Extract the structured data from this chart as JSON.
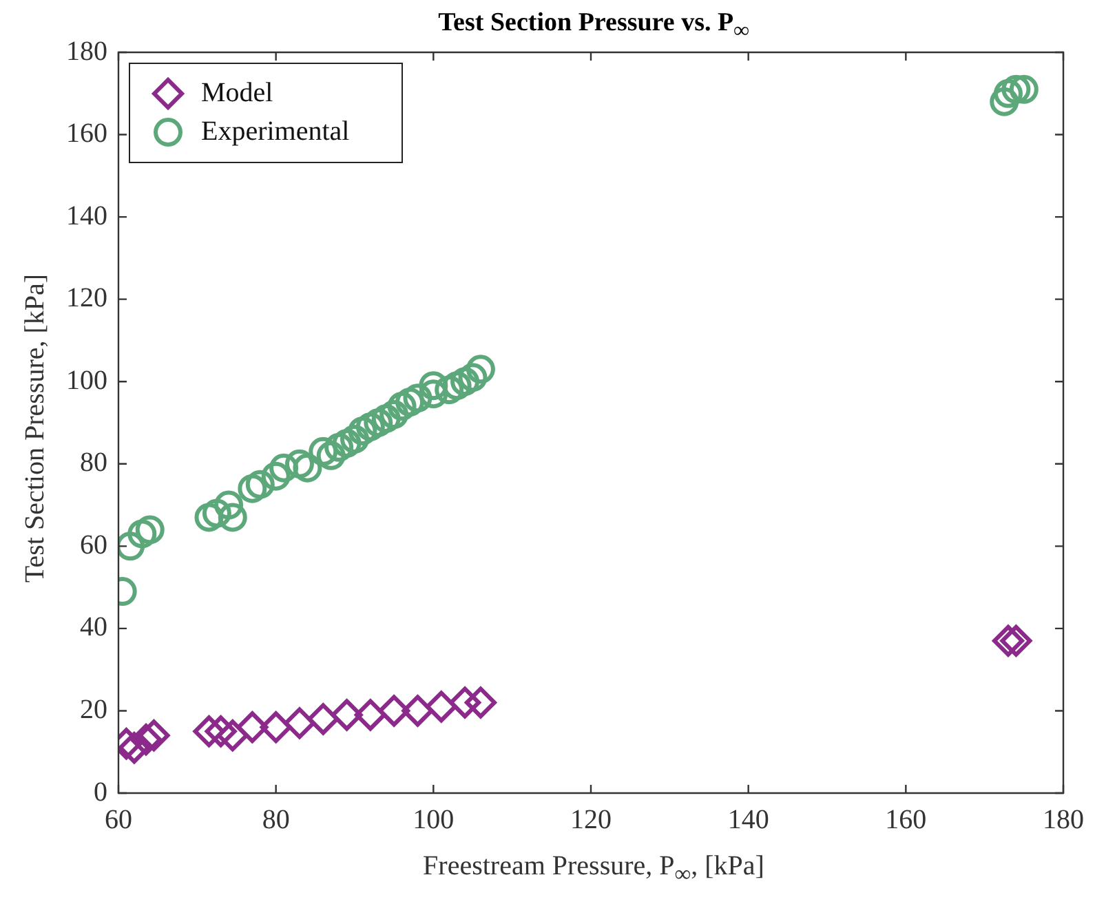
{
  "chart_data": {
    "type": "scatter",
    "title": "Test Section Pressure vs. P$_{∞}$",
    "xlabel": "Freestream Pressure, P$_{∞}$, [kPa]",
    "ylabel": "Test Section Pressure, [kPa]",
    "xlim": [
      60,
      180
    ],
    "xticks": [
      60,
      80,
      100,
      120,
      140,
      160,
      180
    ],
    "ylim": [
      0,
      180
    ],
    "yticks": [
      0,
      20,
      40,
      60,
      80,
      100,
      120,
      140,
      160,
      180
    ],
    "grid": false,
    "legend": "top left",
    "series": [
      {
        "name": "Model",
        "color": "#8b2a8b",
        "marker": "diamond",
        "x": [
          61,
          62,
          63.5,
          64.5,
          71.5,
          73,
          74.5,
          77,
          80,
          83,
          86,
          89,
          92,
          95,
          98,
          101,
          104,
          106,
          173,
          174
        ],
        "values": [
          12,
          11,
          13,
          14,
          15,
          15,
          14,
          16,
          16,
          17,
          18,
          19,
          19,
          20,
          20,
          21,
          22,
          22,
          37,
          37
        ]
      },
      {
        "name": "Experimental",
        "color": "#5ca87a",
        "marker": "circle",
        "x": [
          60.5,
          61.5,
          63,
          64,
          71.5,
          72.5,
          74.5,
          74,
          77,
          78,
          80,
          81,
          83,
          84,
          86,
          87,
          88,
          89,
          90,
          91,
          92,
          93,
          94,
          95,
          96,
          97,
          98,
          100,
          100,
          102,
          103,
          104,
          105,
          106,
          172.5,
          173,
          174,
          175
        ],
        "values": [
          49,
          60,
          63,
          64,
          67,
          68,
          67,
          70,
          74,
          75,
          77,
          79,
          80,
          79,
          83,
          82,
          84,
          85,
          86,
          88,
          89,
          90,
          91,
          92,
          94,
          95,
          96,
          97,
          99,
          98,
          99,
          100,
          101,
          103,
          168,
          170,
          171,
          171
        ]
      }
    ]
  }
}
